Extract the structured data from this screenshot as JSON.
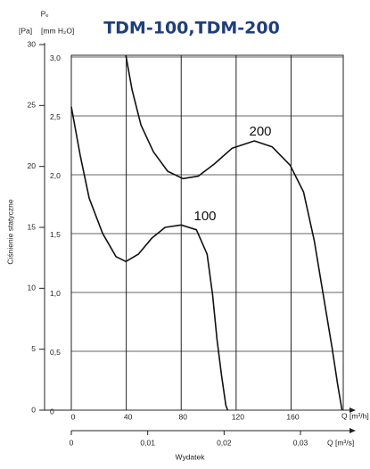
{
  "chart_data": {
    "type": "line",
    "title": "TDM-100,TDM-200",
    "y_label_symbol": "Pₑ",
    "y_label_unit": "[Pa]",
    "y2_label_unit": "[mm H₂O]",
    "y_title": "Ciśnienie statyczne",
    "x_label": "Q [m³/h]",
    "x2_label": "Q [m³/s]",
    "x_title": "Wydatek",
    "xlim": [
      0,
      198
    ],
    "xticks": [
      0,
      40,
      80,
      120,
      160
    ],
    "x2lim": [
      0,
      0.0356
    ],
    "x2ticks": [
      0,
      {
        "value": 0.01,
        "label": "0,01"
      },
      {
        "value": 0.02,
        "label": "0,02"
      },
      {
        "value": 0.03,
        "label": "0,03"
      }
    ],
    "ylim": [
      0,
      30
    ],
    "yticks": [
      0,
      5,
      10,
      15,
      20,
      25,
      30
    ],
    "y2lim": [
      0,
      3.015
    ],
    "y2ticks": [
      0,
      {
        "value": 0.5,
        "label": "0,5"
      },
      {
        "value": 1.0,
        "label": "1,0"
      },
      {
        "value": 1.5,
        "label": "1,5"
      },
      {
        "value": 2.0,
        "label": "2,0"
      },
      {
        "value": 2.5,
        "label": "2,5"
      },
      {
        "value": 3.0,
        "label": "3,0"
      }
    ],
    "grid": true,
    "series": [
      {
        "name": "100",
        "color": "#111111",
        "x": [
          0,
          6.5,
          13.0,
          22.8,
          32.5,
          39.7,
          48.8,
          58.5,
          68.3,
          80,
          91.1,
          98.9,
          102.8,
          106.1,
          109.3,
          112.5,
          113.8
        ],
        "values": [
          24.9,
          20.9,
          17.4,
          14.5,
          12.6,
          12.2,
          12.8,
          14.1,
          15.0,
          15.2,
          14.8,
          12.8,
          9.5,
          5.8,
          2.9,
          0.4,
          0
        ]
      },
      {
        "name": "200",
        "color": "#111111",
        "x": [
          39.7,
          44.2,
          50.7,
          59.8,
          70.2,
          81.3,
          92.4,
          104.1,
          117.1,
          133.3,
          146.3,
          159.3,
          169.1,
          176.9,
          183.4,
          189.9,
          193.8,
          197.1
        ],
        "values": [
          29.1,
          26.3,
          23.4,
          21.2,
          19.6,
          19.0,
          19.2,
          20.2,
          21.5,
          22.1,
          21.6,
          20.1,
          17.9,
          13.9,
          9.5,
          5.1,
          2.2,
          0
        ]
      }
    ]
  }
}
